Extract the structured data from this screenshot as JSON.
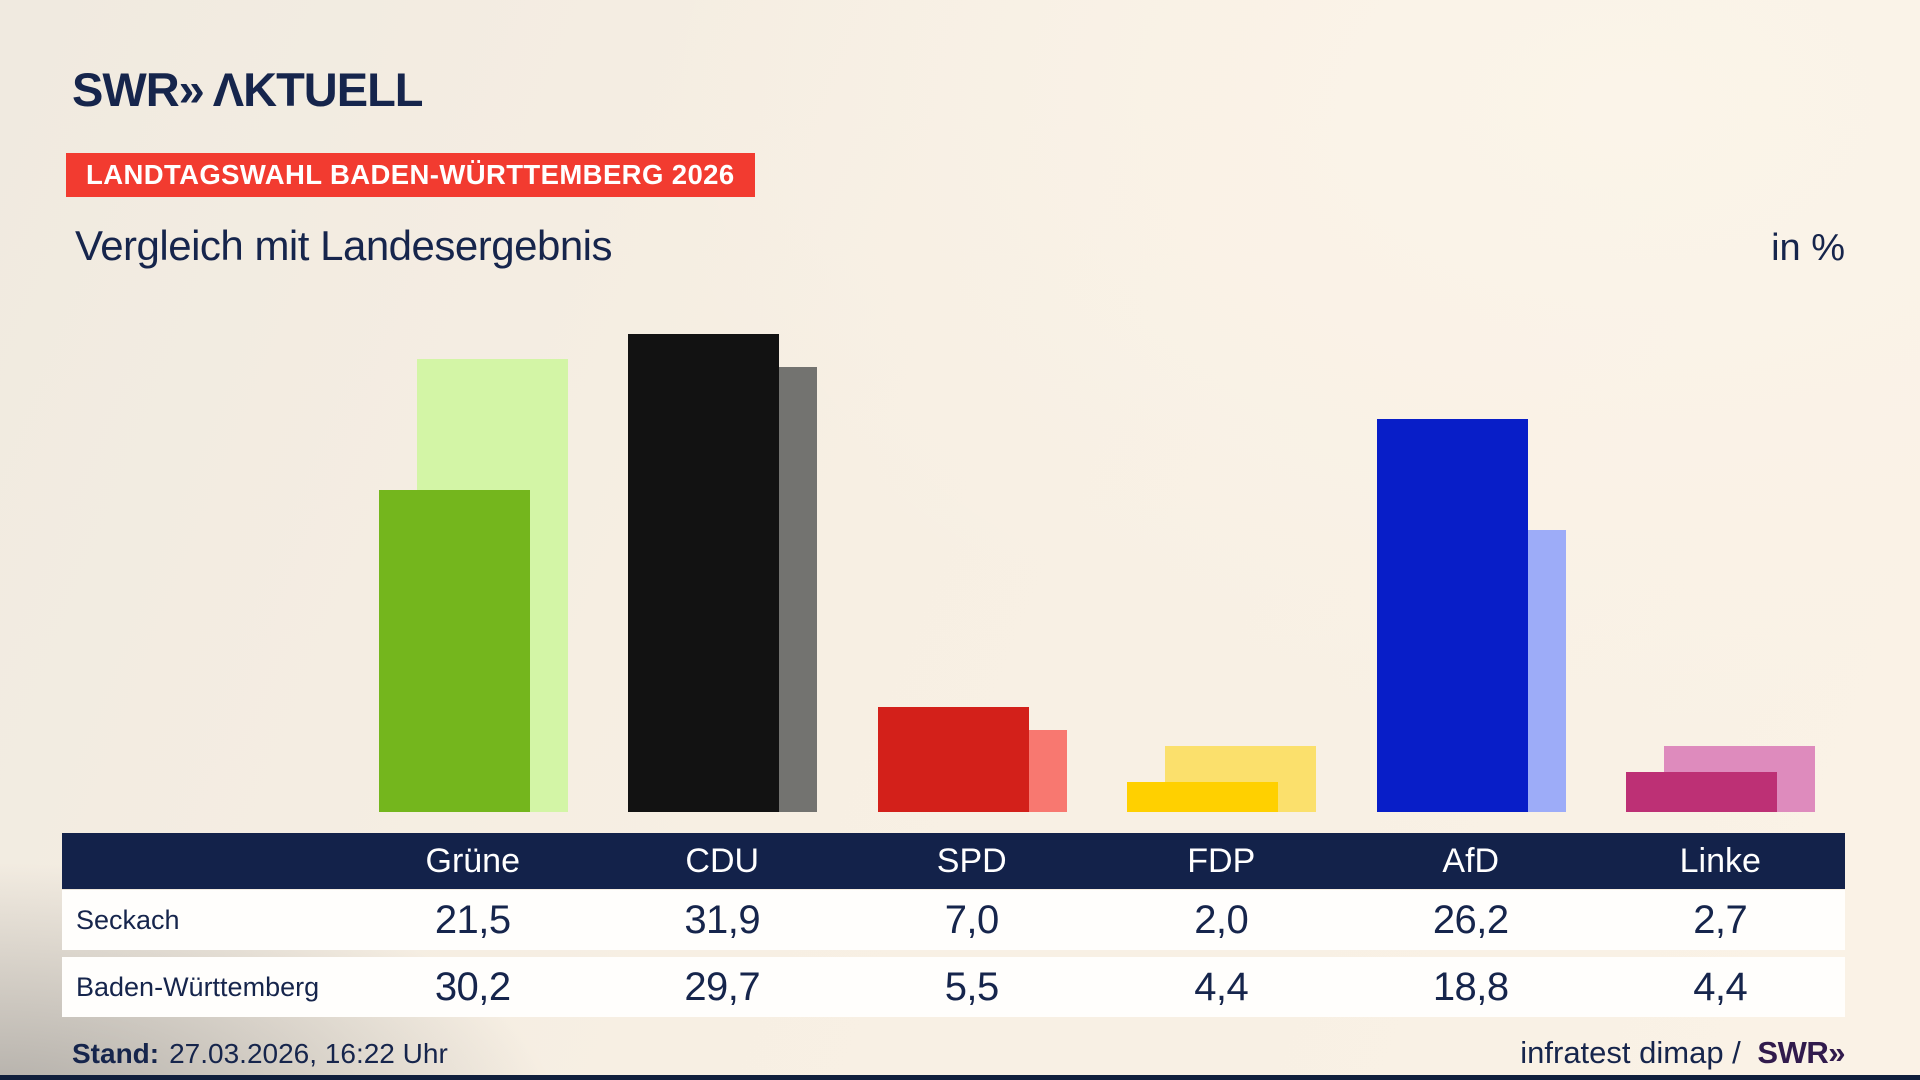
{
  "logo": {
    "swr": "SWR",
    "chevrons": "»",
    "aktuell": "ΛKTUELL"
  },
  "badge": {
    "label": "LANDTAGSWAHL BADEN-WÜRTTEMBERG 2026",
    "color": "#f23b30"
  },
  "title": "Vergleich mit Landesergebnis",
  "unit_label": "in %",
  "chart_data": {
    "type": "bar",
    "title": "Vergleich mit Landesergebnis",
    "unit": "%",
    "categories": [
      "Grüne",
      "CDU",
      "SPD",
      "FDP",
      "AfD",
      "Linke"
    ],
    "series": [
      {
        "name": "Seckach",
        "values": [
          21.5,
          31.9,
          7.0,
          2.0,
          26.2,
          2.7
        ],
        "colors": [
          "#74b61d",
          "#121212",
          "#d3201a",
          "#ffd000",
          "#081ec8",
          "#bd3075"
        ]
      },
      {
        "name": "Baden-Württemberg",
        "values": [
          30.2,
          29.7,
          5.5,
          4.4,
          18.8,
          4.4
        ],
        "colors": [
          "#d3f5a6",
          "#737370",
          "#f87870",
          "#fbe06c",
          "#9dacf8",
          "#de8bbd"
        ]
      }
    ],
    "ylim": [
      0,
      35
    ],
    "grid": false,
    "legend": "table-below",
    "note": "front bar = Seckach, offset lighter bar behind = Baden-Württemberg"
  },
  "table": {
    "columns": [
      "Grüne",
      "CDU",
      "SPD",
      "FDP",
      "AfD",
      "Linke"
    ],
    "rows": [
      {
        "label": "Seckach",
        "values": [
          "21,5",
          "31,9",
          "7,0",
          "2,0",
          "26,2",
          "2,7"
        ]
      },
      {
        "label": "Baden-Württemberg",
        "values": [
          "30,2",
          "29,7",
          "5,5",
          "4,4",
          "18,8",
          "4,4"
        ]
      }
    ],
    "header_bg": "#13224a"
  },
  "footer": {
    "stand_label": "Stand:",
    "stand_value": "27.03.2026, 16:22 Uhr",
    "source_text": "infratest dimap /",
    "source_logo": "SWR»"
  },
  "colors": {
    "navy": "#16254c",
    "badge_red": "#f23b30",
    "background_cream": "#f7efe3"
  }
}
